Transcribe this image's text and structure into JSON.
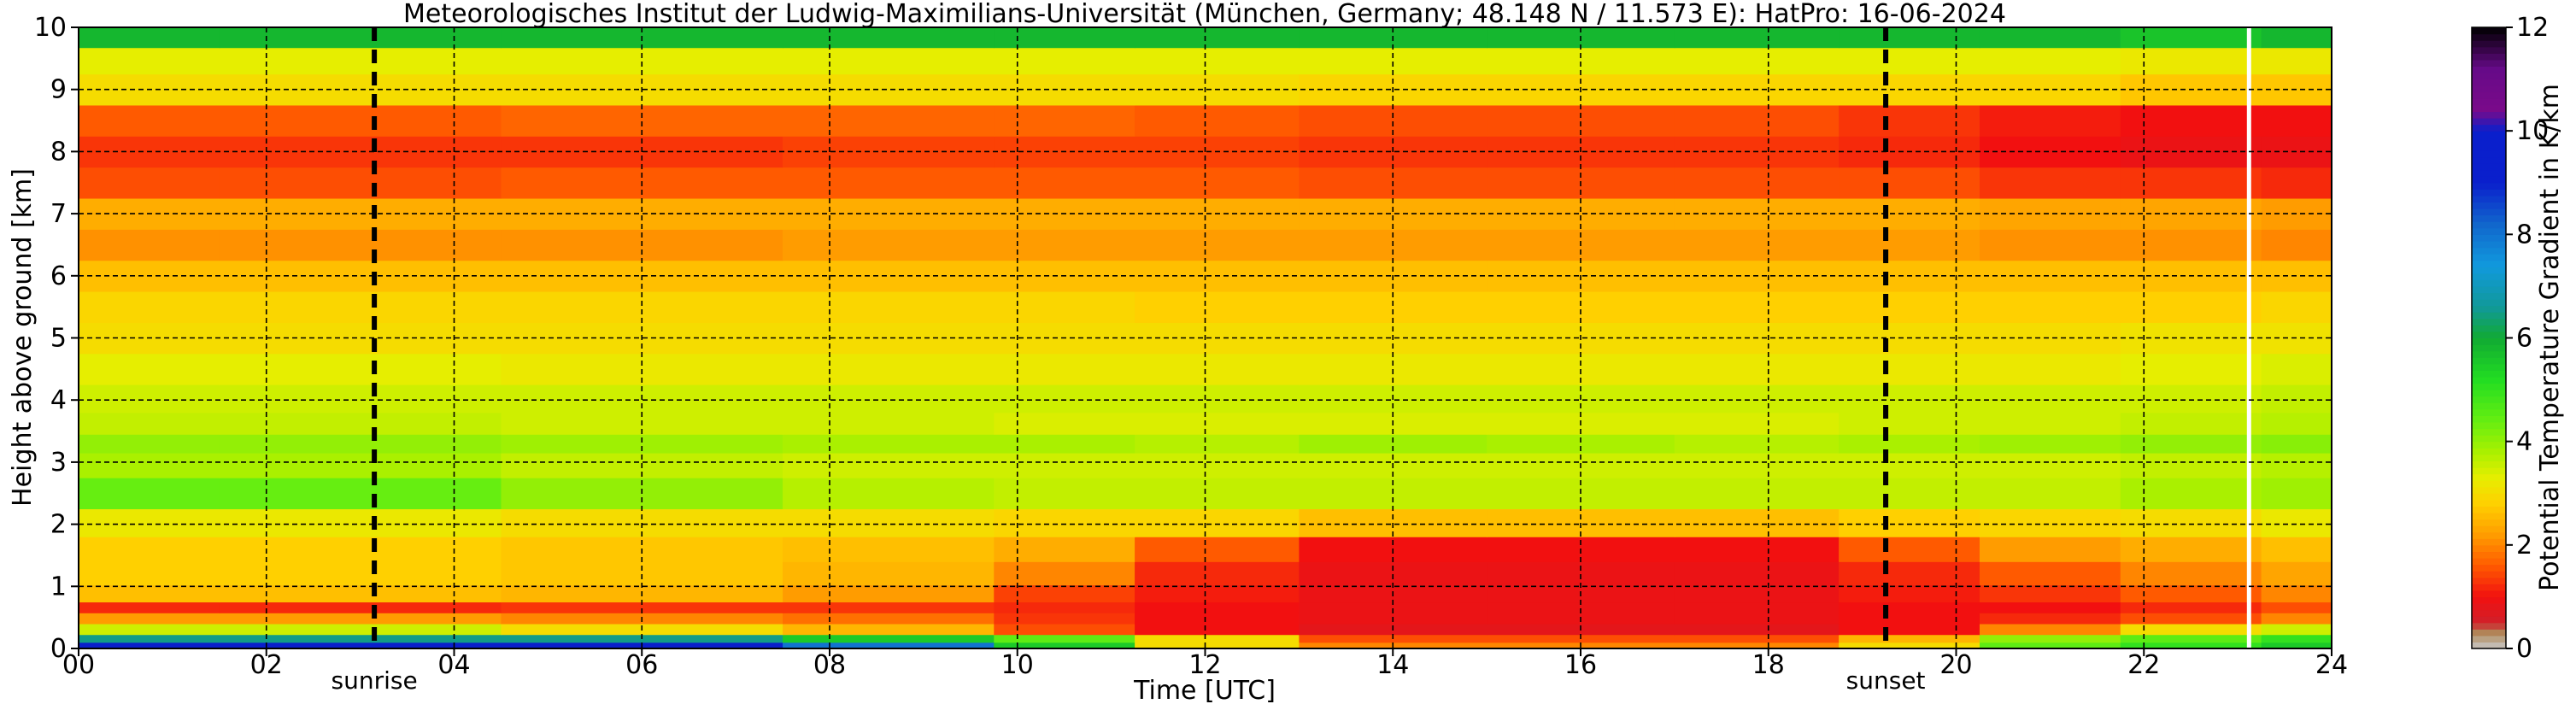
{
  "title": "Meteorologisches Institut der Ludwig-Maximilians-Universität (München, Germany; 48.148 N / 11.573 E):    HatPro: 16-06-2024",
  "chart_data": {
    "type": "heatmap",
    "title": "Meteorologisches Institut der Ludwig-Maximilians-Universität (München, Germany; 48.148 N / 11.573 E):    HatPro: 16-06-2024",
    "xlabel": "Time [UTC]",
    "ylabel": "Height above ground [km]",
    "xlim": [
      0,
      24
    ],
    "ylim": [
      0,
      10
    ],
    "x_ticks": [
      "00",
      "02",
      "04",
      "06",
      "08",
      "10",
      "12",
      "14",
      "16",
      "18",
      "20",
      "22",
      "24"
    ],
    "y_ticks": [
      "0",
      "1",
      "2",
      "3",
      "4",
      "5",
      "6",
      "7",
      "8",
      "9",
      "10"
    ],
    "grid": true,
    "colorbar": {
      "label": "Potential Temperature Gradient in K/km",
      "range": [
        0,
        12
      ],
      "ticks": [
        "0",
        "2",
        "4",
        "6",
        "8",
        "10",
        "12"
      ]
    },
    "markers": [
      {
        "label": "sunrise",
        "x": 3.15
      },
      {
        "label": "sunset",
        "x": 19.25
      }
    ],
    "data_gap_x": 23.12,
    "profile_samples": {
      "heights_km": [
        0.05,
        0.15,
        0.3,
        0.5,
        0.65,
        0.85,
        1.2,
        1.6,
        2.0,
        2.5,
        3.0,
        3.3,
        3.6,
        4.0,
        4.5,
        5.0,
        5.5,
        6.0,
        6.5,
        7.0,
        7.5,
        8.0,
        8.5,
        9.0,
        9.5,
        9.85
      ],
      "times_utc": [
        0,
        3,
        6,
        9,
        10.5,
        12,
        14,
        16,
        18,
        19.5,
        21,
        22.5,
        24
      ],
      "gradient_K_per_km": [
        [
          9.5,
          9.5,
          9.0,
          8.0,
          5.5,
          3.0,
          2.0,
          2.0,
          2.0,
          3.0,
          4.5,
          5.0,
          5.5
        ],
        [
          6.5,
          6.5,
          6.5,
          5.5,
          4.5,
          3.0,
          1.5,
          1.5,
          1.5,
          2.5,
          4.0,
          4.5,
          5.0
        ],
        [
          3.5,
          3.5,
          3.0,
          2.5,
          1.5,
          1.0,
          0.8,
          0.8,
          0.8,
          1.0,
          2.0,
          3.0,
          3.5
        ],
        [
          2.2,
          2.2,
          2.0,
          1.8,
          1.3,
          1.0,
          0.9,
          0.9,
          0.9,
          1.0,
          1.2,
          1.5,
          2.0
        ],
        [
          1.2,
          1.2,
          1.3,
          1.3,
          1.2,
          1.0,
          0.9,
          0.9,
          0.9,
          1.0,
          1.0,
          1.2,
          1.5
        ],
        [
          2.6,
          2.6,
          2.5,
          2.2,
          1.4,
          1.1,
          0.9,
          0.9,
          0.9,
          1.1,
          1.3,
          1.6,
          2.0
        ],
        [
          2.8,
          2.8,
          2.7,
          2.5,
          2.0,
          1.2,
          0.9,
          0.9,
          0.9,
          1.2,
          1.6,
          2.0,
          2.3
        ],
        [
          2.8,
          2.8,
          2.7,
          2.6,
          2.4,
          1.6,
          1.0,
          1.0,
          1.0,
          1.6,
          2.2,
          2.4,
          2.6
        ],
        [
          3.2,
          3.2,
          3.0,
          3.0,
          2.9,
          2.9,
          2.6,
          2.6,
          2.6,
          2.8,
          2.9,
          3.0,
          3.2
        ],
        [
          4.4,
          4.4,
          4.0,
          3.7,
          3.6,
          3.6,
          3.6,
          3.6,
          3.6,
          3.6,
          3.6,
          3.8,
          3.9
        ],
        [
          3.8,
          3.8,
          3.6,
          3.5,
          3.5,
          3.5,
          3.5,
          3.5,
          3.5,
          3.5,
          3.5,
          3.6,
          3.7
        ],
        [
          4.0,
          4.0,
          3.9,
          3.8,
          3.8,
          3.7,
          3.9,
          3.8,
          3.7,
          3.8,
          3.9,
          4.0,
          4.1
        ],
        [
          3.6,
          3.6,
          3.5,
          3.5,
          3.4,
          3.4,
          3.4,
          3.4,
          3.4,
          3.5,
          3.5,
          3.6,
          3.7
        ],
        [
          3.5,
          3.5,
          3.5,
          3.5,
          3.5,
          3.5,
          3.5,
          3.5,
          3.5,
          3.5,
          3.5,
          3.5,
          3.6
        ],
        [
          3.3,
          3.3,
          3.2,
          3.2,
          3.2,
          3.2,
          3.2,
          3.2,
          3.2,
          3.2,
          3.2,
          3.3,
          3.4
        ],
        [
          3.0,
          3.0,
          3.0,
          3.0,
          3.0,
          3.0,
          3.0,
          3.0,
          3.0,
          3.0,
          3.0,
          3.1,
          3.1
        ],
        [
          2.9,
          2.9,
          2.9,
          2.9,
          2.9,
          2.8,
          2.8,
          2.8,
          2.8,
          2.8,
          2.8,
          2.8,
          2.9
        ],
        [
          2.6,
          2.6,
          2.6,
          2.6,
          2.6,
          2.6,
          2.6,
          2.6,
          2.6,
          2.6,
          2.6,
          2.6,
          2.6
        ],
        [
          2.1,
          2.1,
          2.1,
          2.2,
          2.2,
          2.2,
          2.2,
          2.2,
          2.2,
          2.2,
          2.1,
          2.1,
          2.0
        ],
        [
          2.4,
          2.4,
          2.4,
          2.4,
          2.4,
          2.4,
          2.4,
          2.4,
          2.4,
          2.4,
          2.3,
          2.3,
          2.2
        ],
        [
          1.5,
          1.5,
          1.6,
          1.6,
          1.6,
          1.6,
          1.5,
          1.5,
          1.5,
          1.5,
          1.3,
          1.3,
          1.2
        ],
        [
          1.3,
          1.3,
          1.3,
          1.4,
          1.4,
          1.4,
          1.3,
          1.3,
          1.3,
          1.2,
          1.0,
          0.9,
          0.9
        ],
        [
          1.6,
          1.6,
          1.7,
          1.7,
          1.7,
          1.6,
          1.5,
          1.5,
          1.5,
          1.3,
          1.1,
          1.0,
          1.0
        ],
        [
          3.0,
          3.0,
          3.0,
          3.0,
          3.0,
          3.0,
          2.9,
          2.9,
          2.9,
          2.9,
          2.9,
          2.7,
          2.7
        ],
        [
          3.3,
          3.3,
          3.3,
          3.3,
          3.3,
          3.3,
          3.3,
          3.3,
          3.3,
          3.3,
          3.3,
          3.2,
          3.2
        ],
        [
          5.8,
          5.8,
          5.8,
          5.8,
          5.8,
          5.8,
          5.8,
          5.8,
          5.8,
          5.8,
          5.8,
          5.6,
          5.8
        ]
      ]
    }
  }
}
